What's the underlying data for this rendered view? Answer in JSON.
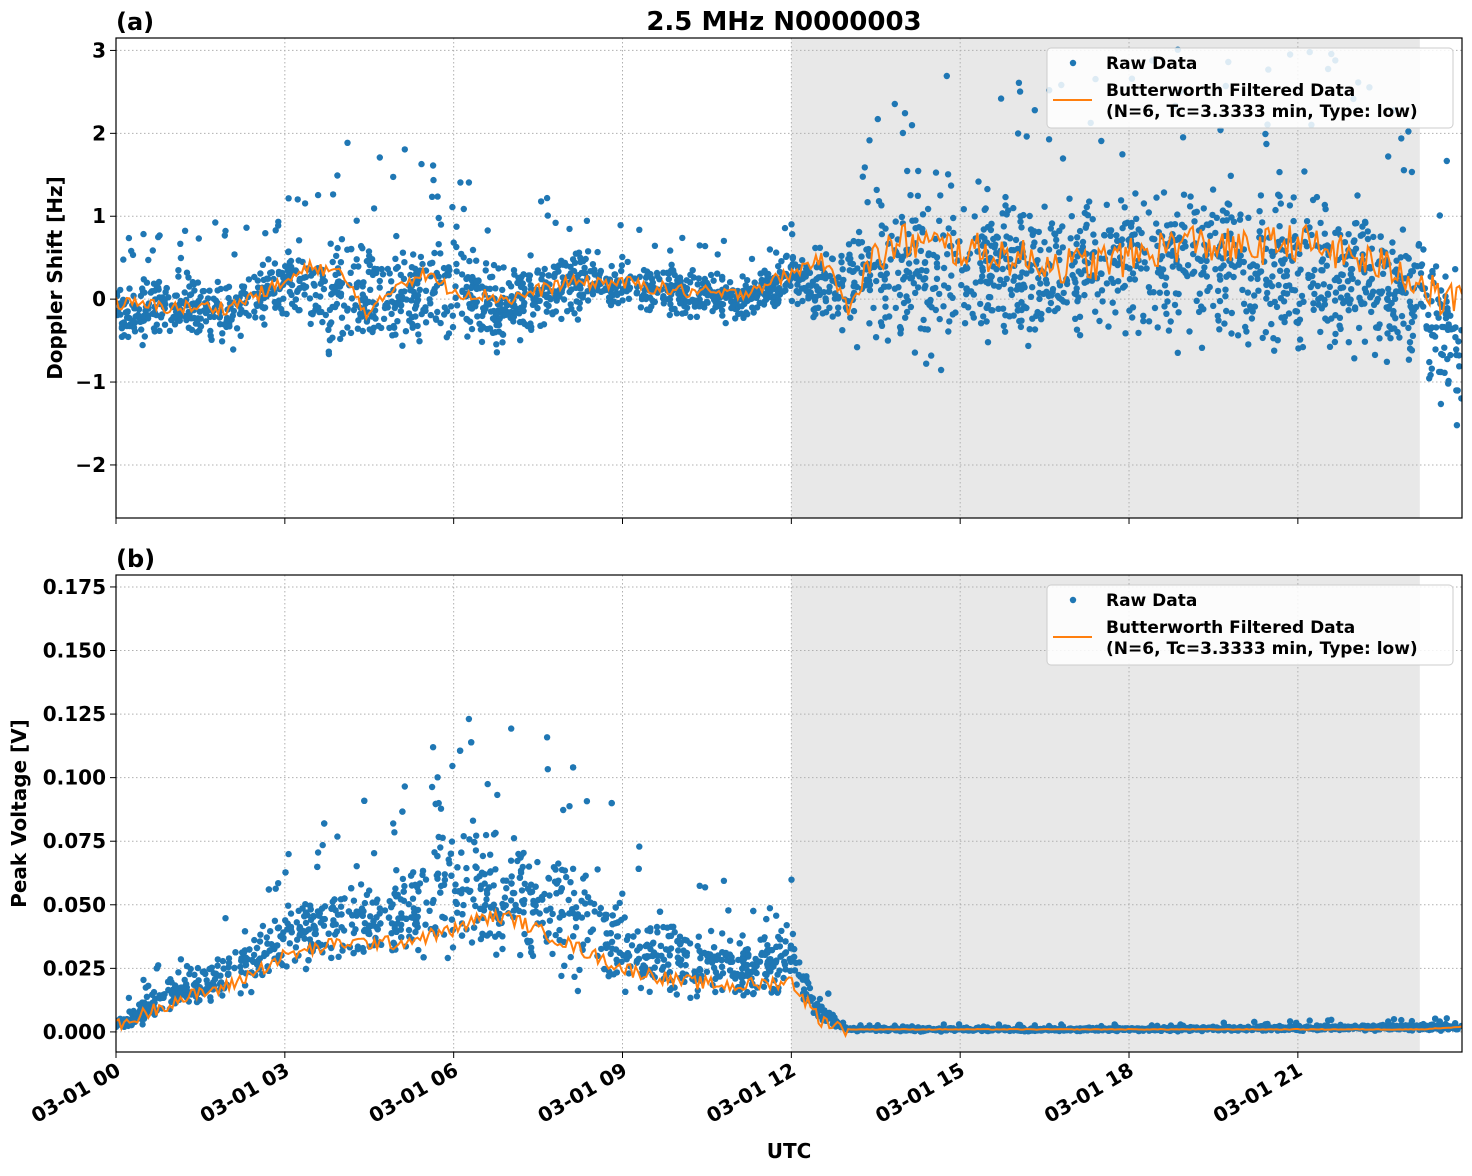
{
  "title": "2.5 MHz N0000003",
  "colors": {
    "raw": "#1f77b4",
    "filtered": "#ff7f0e",
    "shade": "#e8e8e8",
    "grid": "#b0b0b0"
  },
  "chart_data": [
    {
      "type": "scatter+line",
      "panel_label": "(a)",
      "ylabel": "Doppler Shift [Hz]",
      "ylim": [
        -2.64,
        3.15
      ],
      "yticks": [
        3,
        2,
        1,
        0,
        -1,
        -2
      ],
      "ytick_labels": [
        "3",
        "2",
        "1",
        "0",
        "−1",
        "−2"
      ],
      "xlim": [
        "00:00",
        "23:55"
      ],
      "grid": true,
      "legend_placement": "top-right",
      "shaded_interval": [
        "12:00",
        "23:10"
      ],
      "legend": [
        "Raw Data",
        "Butterworth Filtered Data",
        "(N=6, Tc=3.3333 min, Type: low)"
      ],
      "filtered": {
        "x": [
          "00:00",
          "01:00",
          "02:00",
          "03:00",
          "03:30",
          "04:00",
          "04:30",
          "05:00",
          "05:30",
          "06:00",
          "07:00",
          "07:30",
          "08:00",
          "09:00",
          "10:00",
          "11:00",
          "12:00",
          "12:30",
          "13:00",
          "13:30",
          "14:00",
          "15:00",
          "16:00",
          "17:00",
          "18:00",
          "19:00",
          "20:00",
          "21:00",
          "22:00",
          "23:00",
          "23:30",
          "23:55"
        ],
        "y": [
          -0.05,
          -0.1,
          -0.1,
          0.2,
          0.4,
          0.3,
          -0.2,
          0.2,
          0.3,
          0.1,
          0.0,
          0.1,
          0.2,
          0.2,
          0.1,
          0.05,
          0.3,
          0.5,
          0.0,
          0.5,
          0.7,
          0.6,
          0.5,
          0.4,
          0.5,
          0.7,
          0.6,
          0.7,
          0.5,
          0.3,
          0.0,
          0.0
        ]
      },
      "raw_envelope": {
        "x": [
          "00:00",
          "01:00",
          "02:00",
          "03:00",
          "04:00",
          "05:00",
          "06:00",
          "07:00",
          "08:00",
          "09:00",
          "10:00",
          "11:00",
          "12:00",
          "13:00",
          "14:00",
          "15:00",
          "16:00",
          "17:00",
          "18:00",
          "19:00",
          "20:00",
          "21:00",
          "22:00",
          "23:00",
          "23:55"
        ],
        "low": [
          -0.6,
          -0.6,
          -0.7,
          -0.5,
          -1.0,
          -0.9,
          -0.6,
          -0.8,
          -0.3,
          -0.2,
          -0.3,
          -0.4,
          -0.1,
          -0.8,
          -1.1,
          -1.0,
          -0.9,
          -0.8,
          -0.8,
          -0.9,
          -1.0,
          -1.0,
          -0.9,
          -1.2,
          -1.8
        ],
        "high": [
          0.3,
          0.4,
          0.4,
          0.9,
          1.2,
          1.0,
          0.8,
          0.6,
          0.7,
          0.6,
          0.5,
          0.4,
          0.6,
          1.0,
          1.8,
          1.8,
          1.6,
          1.5,
          1.6,
          1.8,
          1.8,
          1.8,
          1.6,
          1.2,
          0.6
        ]
      }
    },
    {
      "type": "scatter+line",
      "panel_label": "(b)",
      "ylabel": "Peak Voltage [V]",
      "xlabel": "UTC",
      "ylim": [
        -0.0079,
        0.1797
      ],
      "yticks": [
        0.175,
        0.15,
        0.125,
        0.1,
        0.075,
        0.05,
        0.025,
        0.0
      ],
      "ytick_labels": [
        "0.175",
        "0.150",
        "0.125",
        "0.100",
        "0.075",
        "0.050",
        "0.025",
        "0.000"
      ],
      "xticks": [
        "00:00",
        "03:00",
        "06:00",
        "09:00",
        "12:00",
        "15:00",
        "18:00",
        "21:00"
      ],
      "xtick_labels": [
        "03-01 00",
        "03-01 03",
        "03-01 06",
        "03-01 09",
        "03-01 12",
        "03-01 15",
        "03-01 18",
        "03-01 21"
      ],
      "xlim": [
        "00:00",
        "23:55"
      ],
      "grid": true,
      "legend_placement": "top-right",
      "shaded_interval": [
        "12:00",
        "23:10"
      ],
      "legend": [
        "Raw Data",
        "Butterworth Filtered Data",
        "(N=6, Tc=3.3333 min, Type: low)"
      ],
      "filtered": {
        "x": [
          "00:00",
          "01:00",
          "02:00",
          "03:00",
          "04:00",
          "05:00",
          "06:00",
          "06:30",
          "07:00",
          "07:30",
          "08:00",
          "09:00",
          "10:00",
          "11:00",
          "12:00",
          "12:30",
          "13:00",
          "18:00",
          "23:10",
          "23:55"
        ],
        "y": [
          0.002,
          0.012,
          0.018,
          0.03,
          0.035,
          0.035,
          0.04,
          0.045,
          0.045,
          0.04,
          0.035,
          0.025,
          0.02,
          0.018,
          0.02,
          0.005,
          0.001,
          0.001,
          0.001,
          0.002
        ]
      },
      "raw_envelope": {
        "x": [
          "00:00",
          "01:00",
          "02:00",
          "03:00",
          "04:00",
          "05:00",
          "06:00",
          "07:00",
          "08:00",
          "09:00",
          "10:00",
          "11:00",
          "12:00",
          "12:30",
          "13:00",
          "18:00",
          "23:55"
        ],
        "low": [
          0.0,
          0.005,
          0.008,
          0.015,
          0.018,
          0.02,
          0.02,
          0.02,
          0.015,
          0.01,
          0.008,
          0.008,
          0.01,
          0.002,
          0.0,
          0.0,
          0.0
        ],
        "high": [
          0.005,
          0.025,
          0.035,
          0.06,
          0.07,
          0.07,
          0.09,
          0.09,
          0.08,
          0.06,
          0.05,
          0.045,
          0.045,
          0.015,
          0.002,
          0.002,
          0.004
        ]
      }
    }
  ]
}
